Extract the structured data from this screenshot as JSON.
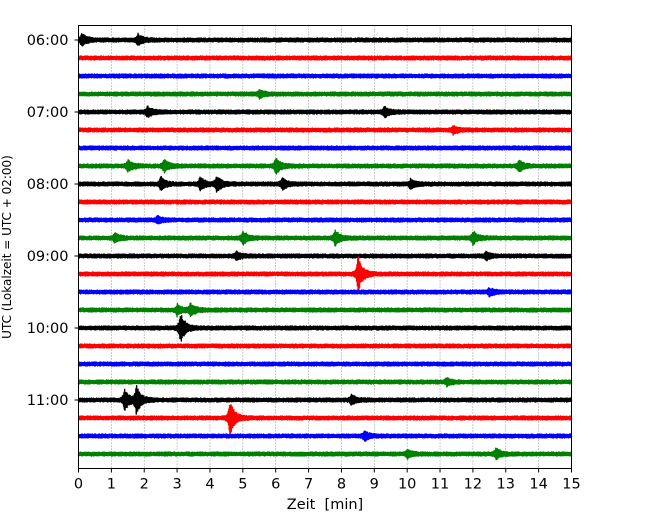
{
  "chart_data": {
    "type": "line",
    "title": "",
    "xlabel": "Zeit  [min]",
    "ylabel": "UTC (Lokalzeit = UTC + 02:00)",
    "xlim": [
      0,
      15
    ],
    "x_ticks": [
      "0",
      "1",
      "2",
      "3",
      "4",
      "5",
      "6",
      "7",
      "8",
      "9",
      "10",
      "11",
      "12",
      "13",
      "14",
      "15"
    ],
    "hour_labels": [
      "06:00",
      "07:00",
      "08:00",
      "09:00",
      "10:00",
      "11:00"
    ],
    "line_colors": [
      "#000000",
      "#ff0000",
      "#0000ff",
      "#008000"
    ],
    "grid": "vertical dotted at each minute",
    "traces": [
      {
        "start": "06:00",
        "color": "#000000",
        "events": [
          {
            "t": 0.1,
            "amp": 0.35
          },
          {
            "t": 1.8,
            "amp": 0.3
          }
        ]
      },
      {
        "start": "06:15",
        "color": "#ff0000",
        "events": []
      },
      {
        "start": "06:30",
        "color": "#0000ff",
        "events": []
      },
      {
        "start": "06:45",
        "color": "#008000",
        "events": [
          {
            "t": 5.5,
            "amp": 0.2
          }
        ]
      },
      {
        "start": "07:00",
        "color": "#000000",
        "events": [
          {
            "t": 2.1,
            "amp": 0.3
          },
          {
            "t": 9.3,
            "amp": 0.3
          }
        ]
      },
      {
        "start": "07:15",
        "color": "#ff0000",
        "events": [
          {
            "t": 11.4,
            "amp": 0.2
          }
        ]
      },
      {
        "start": "07:30",
        "color": "#0000ff",
        "events": []
      },
      {
        "start": "07:45",
        "color": "#008000",
        "events": [
          {
            "t": 1.5,
            "amp": 0.3
          },
          {
            "t": 2.6,
            "amp": 0.35
          },
          {
            "t": 6.0,
            "amp": 0.45
          },
          {
            "t": 13.4,
            "amp": 0.3
          }
        ]
      },
      {
        "start": "08:00",
        "color": "#000000",
        "events": [
          {
            "t": 2.5,
            "amp": 0.35
          },
          {
            "t": 3.7,
            "amp": 0.35
          },
          {
            "t": 4.2,
            "amp": 0.45
          },
          {
            "t": 6.2,
            "amp": 0.3
          },
          {
            "t": 10.1,
            "amp": 0.25
          }
        ]
      },
      {
        "start": "08:15",
        "color": "#ff0000",
        "events": []
      },
      {
        "start": "08:30",
        "color": "#0000ff",
        "events": [
          {
            "t": 2.4,
            "amp": 0.2
          }
        ]
      },
      {
        "start": "08:45",
        "color": "#008000",
        "events": [
          {
            "t": 1.1,
            "amp": 0.25
          },
          {
            "t": 5.0,
            "amp": 0.35
          },
          {
            "t": 7.8,
            "amp": 0.4
          },
          {
            "t": 12.0,
            "amp": 0.35
          }
        ]
      },
      {
        "start": "09:00",
        "color": "#000000",
        "events": [
          {
            "t": 4.8,
            "amp": 0.2
          },
          {
            "t": 12.4,
            "amp": 0.2
          }
        ]
      },
      {
        "start": "09:15",
        "color": "#ff0000",
        "events": [
          {
            "t": 8.5,
            "amp": 1.0
          }
        ]
      },
      {
        "start": "09:30",
        "color": "#0000ff",
        "events": [
          {
            "t": 12.5,
            "amp": 0.2
          }
        ]
      },
      {
        "start": "09:45",
        "color": "#008000",
        "events": [
          {
            "t": 3.0,
            "amp": 0.3
          },
          {
            "t": 3.4,
            "amp": 0.35
          }
        ]
      },
      {
        "start": "10:00",
        "color": "#000000",
        "events": [
          {
            "t": 3.1,
            "amp": 0.85
          }
        ]
      },
      {
        "start": "10:15",
        "color": "#ff0000",
        "events": []
      },
      {
        "start": "10:30",
        "color": "#0000ff",
        "events": []
      },
      {
        "start": "10:45",
        "color": "#008000",
        "events": [
          {
            "t": 11.2,
            "amp": 0.2
          }
        ]
      },
      {
        "start": "11:00",
        "color": "#000000",
        "events": [
          {
            "t": 1.4,
            "amp": 0.55
          },
          {
            "t": 1.75,
            "amp": 0.75
          },
          {
            "t": 8.3,
            "amp": 0.25
          }
        ]
      },
      {
        "start": "11:15",
        "color": "#ff0000",
        "events": [
          {
            "t": 4.6,
            "amp": 0.95
          }
        ]
      },
      {
        "start": "11:30",
        "color": "#0000ff",
        "events": [
          {
            "t": 8.7,
            "amp": 0.25
          }
        ]
      },
      {
        "start": "11:45",
        "color": "#008000",
        "events": [
          {
            "t": 10.0,
            "amp": 0.2
          },
          {
            "t": 12.7,
            "amp": 0.3
          }
        ]
      }
    ]
  }
}
